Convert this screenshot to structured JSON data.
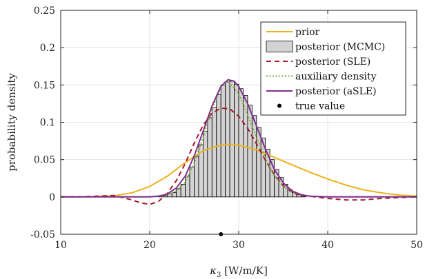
{
  "chart_data": {
    "type": "line",
    "title": "",
    "xlabel": {
      "symbol": "κ",
      "subscript": "3",
      "unit": " [W/m/K]"
    },
    "ylabel": "probability density",
    "xlim": [
      10,
      50
    ],
    "ylim": [
      -0.05,
      0.25
    ],
    "xticks": [
      10,
      20,
      30,
      40,
      50
    ],
    "yticks": [
      -0.05,
      0,
      0.05,
      0.1,
      0.15,
      0.2,
      0.25
    ],
    "ytick_labels": [
      "-0.05",
      "0",
      "0.05",
      "0.1",
      "0.15",
      "0.2",
      "0.25"
    ],
    "grid": true,
    "legend_position": "top-right",
    "colors": {
      "prior": "#EDB120",
      "hist_fill": "#D3D3D3",
      "hist_edge": "#000000",
      "sle": "#A2142F",
      "aux": "#77AC30",
      "asle": "#7E2F8E",
      "true": "#000000"
    },
    "legend": [
      "prior",
      "posterior (MCMC)",
      "posterior (SLE)",
      "auxiliary density",
      "posterior (aSLE)",
      "true value"
    ],
    "series": [
      {
        "name": "prior",
        "style": "solid",
        "x": [
          10,
          12,
          14,
          16,
          18,
          20,
          22,
          24,
          26,
          28,
          29,
          30,
          32,
          34,
          36,
          38,
          40,
          42,
          44,
          46,
          48,
          50
        ],
        "y": [
          0,
          0,
          0.0005,
          0.0015,
          0.0055,
          0.014,
          0.028,
          0.046,
          0.062,
          0.0695,
          0.0705,
          0.0695,
          0.063,
          0.053,
          0.043,
          0.033,
          0.024,
          0.016,
          0.0095,
          0.0055,
          0.0025,
          0.001
        ]
      },
      {
        "name": "posterior (SLE)",
        "style": "dashed",
        "x": [
          10,
          12,
          14,
          16,
          18,
          19,
          20,
          21,
          22,
          23,
          24,
          25,
          26,
          27,
          28,
          29,
          30,
          31,
          32,
          33,
          34,
          35,
          36,
          37,
          38,
          40,
          42,
          44,
          46,
          48,
          50
        ],
        "y": [
          0,
          0,
          0.001,
          0.002,
          -0.004,
          -0.008,
          -0.01,
          -0.006,
          0.005,
          0.022,
          0.045,
          0.072,
          0.096,
          0.112,
          0.119,
          0.118,
          0.108,
          0.092,
          0.071,
          0.049,
          0.03,
          0.015,
          0.006,
          0.002,
          0.001,
          -0.002,
          -0.004,
          -0.004,
          -0.002,
          -0.001,
          0
        ]
      },
      {
        "name": "auxiliary density",
        "style": "dotted",
        "x": [
          10,
          18,
          20,
          22,
          23,
          24,
          25,
          26,
          27,
          28,
          28.5,
          29,
          30,
          31,
          32,
          33,
          34,
          35,
          36,
          38,
          40,
          50
        ],
        "y": [
          0,
          0,
          0,
          0.003,
          0.008,
          0.02,
          0.045,
          0.08,
          0.118,
          0.147,
          0.155,
          0.153,
          0.138,
          0.11,
          0.08,
          0.052,
          0.028,
          0.014,
          0.006,
          0.001,
          0,
          0
        ]
      },
      {
        "name": "posterior (aSLE)",
        "style": "solid",
        "x": [
          10,
          20,
          21,
          22,
          23,
          24,
          25,
          26,
          27,
          28,
          28.8,
          29.5,
          30,
          31,
          32,
          33,
          34,
          35,
          36,
          37,
          38,
          40,
          50
        ],
        "y": [
          0,
          0,
          0.001,
          0.004,
          0.012,
          0.028,
          0.055,
          0.088,
          0.122,
          0.148,
          0.157,
          0.155,
          0.148,
          0.125,
          0.095,
          0.064,
          0.037,
          0.019,
          0.008,
          0.003,
          0.001,
          0,
          0
        ]
      }
    ],
    "histogram": {
      "name": "posterior (MCMC)",
      "bin_width": 0.5,
      "bin_starts": [
        21,
        21.5,
        22,
        22.5,
        23,
        23.5,
        24,
        24.5,
        25,
        25.5,
        26,
        26.5,
        27,
        27.5,
        28,
        28.5,
        29,
        29.5,
        30,
        30.5,
        31,
        31.5,
        32,
        32.5,
        33,
        33.5,
        34,
        34.5,
        35,
        35.5,
        36,
        36.5,
        37
      ],
      "values": [
        0.0015,
        0.002,
        0.004,
        0.006,
        0.011,
        0.017,
        0.028,
        0.04,
        0.054,
        0.07,
        0.088,
        0.106,
        0.12,
        0.137,
        0.15,
        0.154,
        0.155,
        0.151,
        0.145,
        0.136,
        0.123,
        0.109,
        0.093,
        0.079,
        0.064,
        0.05,
        0.037,
        0.026,
        0.017,
        0.01,
        0.006,
        0.003,
        0.001
      ]
    },
    "true_value": {
      "x": 28,
      "y": -0.05
    }
  }
}
